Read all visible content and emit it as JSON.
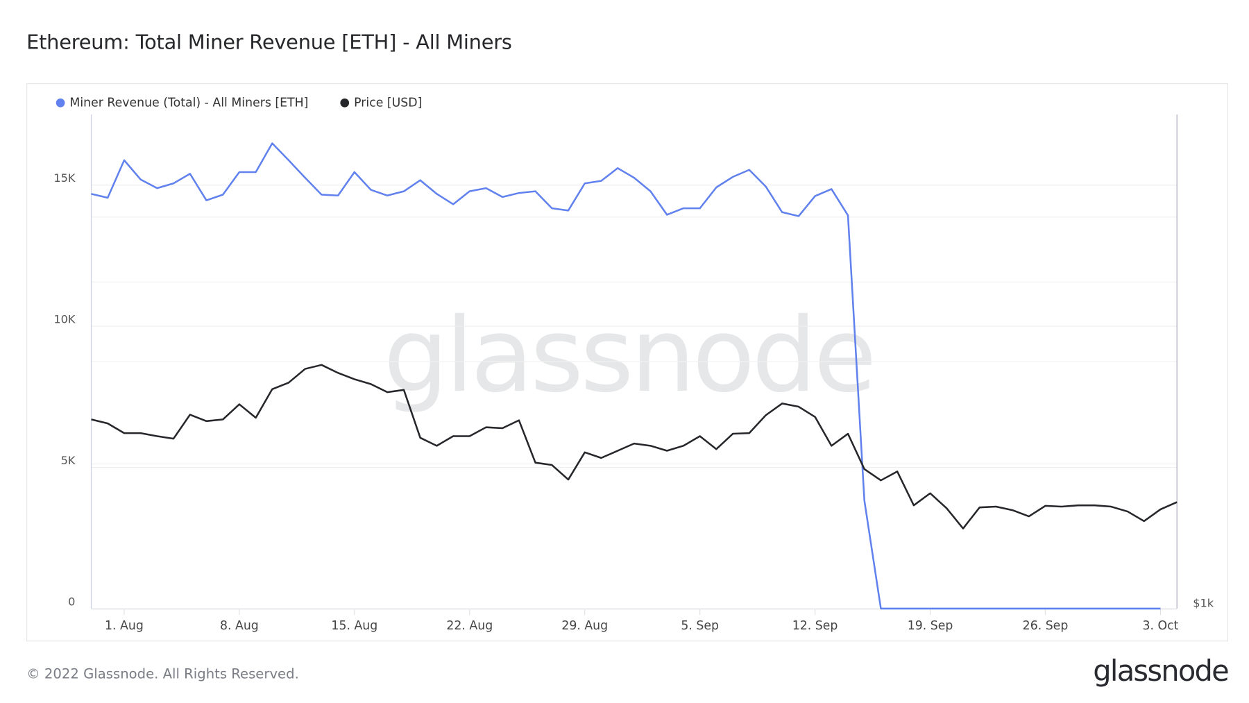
{
  "title": "Ethereum: Total Miner Revenue [ETH] - All Miners",
  "footer": "© 2022 Glassnode. All Rights Reserved.",
  "logo": "glassnode",
  "watermark": "glassnode",
  "colors": {
    "revenue": "#6182ee",
    "price": "#26272b"
  },
  "chart_data": {
    "type": "line",
    "title": "Ethereum: Total Miner Revenue [ETH] - All Miners",
    "legend_position": "top-left",
    "grid": true,
    "x": [
      "2022-07-30",
      "2022-07-31",
      "2022-08-01",
      "2022-08-02",
      "2022-08-03",
      "2022-08-04",
      "2022-08-05",
      "2022-08-06",
      "2022-08-07",
      "2022-08-08",
      "2022-08-09",
      "2022-08-10",
      "2022-08-11",
      "2022-08-12",
      "2022-08-13",
      "2022-08-14",
      "2022-08-15",
      "2022-08-16",
      "2022-08-17",
      "2022-08-18",
      "2022-08-19",
      "2022-08-20",
      "2022-08-21",
      "2022-08-22",
      "2022-08-23",
      "2022-08-24",
      "2022-08-25",
      "2022-08-26",
      "2022-08-27",
      "2022-08-28",
      "2022-08-29",
      "2022-08-30",
      "2022-08-31",
      "2022-09-01",
      "2022-09-02",
      "2022-09-03",
      "2022-09-04",
      "2022-09-05",
      "2022-09-06",
      "2022-09-07",
      "2022-09-08",
      "2022-09-09",
      "2022-09-10",
      "2022-09-11",
      "2022-09-12",
      "2022-09-13",
      "2022-09-14",
      "2022-09-15",
      "2022-09-16",
      "2022-09-17",
      "2022-09-18",
      "2022-09-19",
      "2022-09-20",
      "2022-09-21",
      "2022-09-22",
      "2022-09-23",
      "2022-09-24",
      "2022-09-25",
      "2022-09-26",
      "2022-09-27",
      "2022-09-28",
      "2022-09-29",
      "2022-09-30",
      "2022-10-01",
      "2022-10-02",
      "2022-10-03",
      "2022-10-04"
    ],
    "x_ticks": [
      {
        "date": "2022-08-01",
        "label": "1. Aug"
      },
      {
        "date": "2022-08-08",
        "label": "8. Aug"
      },
      {
        "date": "2022-08-15",
        "label": "15. Aug"
      },
      {
        "date": "2022-08-22",
        "label": "22. Aug"
      },
      {
        "date": "2022-08-29",
        "label": "29. Aug"
      },
      {
        "date": "2022-09-05",
        "label": "5. Sep"
      },
      {
        "date": "2022-09-12",
        "label": "12. Sep"
      },
      {
        "date": "2022-09-19",
        "label": "19. Sep"
      },
      {
        "date": "2022-09-26",
        "label": "26. Sep"
      },
      {
        "date": "2022-10-03",
        "label": "3. Oct"
      }
    ],
    "y_left": {
      "range": [
        0,
        17500
      ],
      "ticks": [
        {
          "value": 0,
          "label": "0"
        },
        {
          "value": 5000,
          "label": "5K"
        },
        {
          "value": 10000,
          "label": "10K"
        },
        {
          "value": 15000,
          "label": "15K"
        }
      ]
    },
    "y_right": {
      "scale": "log",
      "range": [
        1000,
        4000
      ],
      "ticks": [
        {
          "value": 1000,
          "label": "$1k"
        }
      ]
    },
    "series": [
      {
        "name": "Miner Revenue (Total) - All Miners [ETH]",
        "axis": "left",
        "values": [
          14690,
          14550,
          15880,
          15200,
          14890,
          15060,
          15400,
          14460,
          14660,
          15460,
          15460,
          16480,
          15880,
          15260,
          14660,
          14630,
          15460,
          14830,
          14630,
          14780,
          15170,
          14690,
          14320,
          14780,
          14890,
          14580,
          14720,
          14780,
          14180,
          14100,
          15060,
          15150,
          15600,
          15260,
          14780,
          13950,
          14180,
          14180,
          14920,
          15290,
          15540,
          14950,
          14040,
          13900,
          14610,
          14860,
          13930,
          3830,
          0,
          0,
          0,
          0,
          0,
          0,
          0,
          0,
          0,
          0,
          0,
          0,
          0,
          0,
          0,
          0,
          0,
          0,
          null
        ]
      },
      {
        "name": "Price [USD]",
        "axis": "right",
        "values": [
          1700,
          1681,
          1636,
          1636,
          1622,
          1611,
          1723,
          1692,
          1700,
          1774,
          1708,
          1851,
          1885,
          1959,
          1981,
          1937,
          1903,
          1877,
          1835,
          1847,
          1615,
          1579,
          1622,
          1622,
          1663,
          1659,
          1696,
          1506,
          1496,
          1436,
          1550,
          1526,
          1557,
          1589,
          1579,
          1557,
          1579,
          1622,
          1564,
          1633,
          1636,
          1720,
          1778,
          1762,
          1712,
          1579,
          1633,
          1479,
          1433,
          1469,
          1336,
          1382,
          1325,
          1252,
          1328,
          1331,
          1318,
          1295,
          1334,
          1331,
          1336,
          1336,
          1331,
          1313,
          1278,
          1321,
          1348
        ]
      }
    ]
  }
}
